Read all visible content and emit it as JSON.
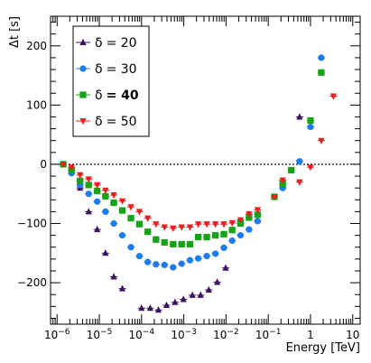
{
  "chart_data": {
    "type": "scatter",
    "xlabel": "Energy [TeV]",
    "ylabel": "Δt [s]",
    "x_scale": "log",
    "xlim": [
      7e-07,
      15
    ],
    "ylim": [
      -270,
      250
    ],
    "x_ticks": [
      {
        "value": 1e-06,
        "base": "10",
        "exp": "−6"
      },
      {
        "value": 1e-05,
        "base": "10",
        "exp": "−5"
      },
      {
        "value": 0.0001,
        "base": "10",
        "exp": "−4"
      },
      {
        "value": 0.001,
        "base": "10",
        "exp": "−3"
      },
      {
        "value": 0.01,
        "base": "10",
        "exp": "−2"
      },
      {
        "value": 0.1,
        "base": "10",
        "exp": "−1"
      },
      {
        "value": 1,
        "base": "1",
        "exp": ""
      },
      {
        "value": 10,
        "base": "10",
        "exp": ""
      }
    ],
    "y_ticks": [
      -200,
      -100,
      0,
      100,
      200
    ],
    "y_tick_labels": [
      "−200",
      "−100",
      "0",
      "100",
      "200"
    ],
    "reference_line_y": 0,
    "legend": {
      "position": "top-left"
    },
    "series": [
      {
        "name": "δ = 20",
        "label_symbol": "δ",
        "label_value": "= 20",
        "bold": false,
        "marker": "triangle-up",
        "color": "#3c1361",
        "points": [
          [
            1.4e-06,
            0
          ],
          [
            2.2e-06,
            -10
          ],
          [
            3.5e-06,
            -40
          ],
          [
            5.6e-06,
            -80
          ],
          [
            8.9e-06,
            -110
          ],
          [
            1.4e-05,
            -150
          ],
          [
            2.2e-05,
            -190
          ],
          [
            3.5e-05,
            -210
          ],
          [
            0.0001,
            -243
          ],
          [
            0.00016,
            -243
          ],
          [
            0.00025,
            -246
          ],
          [
            0.00039,
            -238
          ],
          [
            0.00062,
            -233
          ],
          [
            0.00098,
            -228
          ],
          [
            0.0016,
            -221
          ],
          [
            0.0025,
            -221
          ],
          [
            0.0039,
            -212
          ],
          [
            0.0062,
            -199
          ],
          [
            0.0098,
            -175
          ],
          [
            0.55,
            80
          ]
        ]
      },
      {
        "name": "δ = 30",
        "label_symbol": "δ",
        "label_value": "= 30",
        "bold": false,
        "marker": "circle",
        "color": "#1e7bf0",
        "points": [
          [
            1.4e-06,
            0
          ],
          [
            2.2e-06,
            -15
          ],
          [
            3.5e-06,
            -35
          ],
          [
            5.6e-06,
            -50
          ],
          [
            8.9e-06,
            -63
          ],
          [
            1.4e-05,
            -80
          ],
          [
            2.2e-05,
            -100
          ],
          [
            3.5e-05,
            -120
          ],
          [
            5.6e-05,
            -140
          ],
          [
            8.9e-05,
            -155
          ],
          [
            0.00014,
            -165
          ],
          [
            0.00022,
            -169
          ],
          [
            0.00035,
            -170
          ],
          [
            0.00056,
            -174
          ],
          [
            0.00089,
            -168
          ],
          [
            0.0014,
            -162
          ],
          [
            0.0022,
            -159
          ],
          [
            0.0035,
            -155
          ],
          [
            0.0056,
            -151
          ],
          [
            0.0089,
            -141
          ],
          [
            0.014,
            -129
          ],
          [
            0.022,
            -120
          ],
          [
            0.035,
            -110
          ],
          [
            0.056,
            -96
          ],
          [
            0.22,
            -40
          ],
          [
            0.55,
            5
          ],
          [
            1.0,
            63
          ],
          [
            1.8,
            180
          ]
        ]
      },
      {
        "name": "δ = 40",
        "label_symbol": "δ",
        "label_value": "= 40",
        "bold": true,
        "marker": "square",
        "color": "#16a316",
        "points": [
          [
            1.4e-06,
            0
          ],
          [
            2.2e-06,
            -10
          ],
          [
            3.5e-06,
            -28
          ],
          [
            5.6e-06,
            -35
          ],
          [
            8.9e-06,
            -45
          ],
          [
            1.4e-05,
            -54
          ],
          [
            2.2e-05,
            -65
          ],
          [
            3.5e-05,
            -78
          ],
          [
            5.6e-05,
            -91
          ],
          [
            8.9e-05,
            -101
          ],
          [
            0.00014,
            -114
          ],
          [
            0.00022,
            -127
          ],
          [
            0.00035,
            -132
          ],
          [
            0.00056,
            -135
          ],
          [
            0.00089,
            -135
          ],
          [
            0.0014,
            -135
          ],
          [
            0.0022,
            -123
          ],
          [
            0.0035,
            -123
          ],
          [
            0.0056,
            -120
          ],
          [
            0.0089,
            -118
          ],
          [
            0.014,
            -111
          ],
          [
            0.022,
            -100
          ],
          [
            0.035,
            -90
          ],
          [
            0.056,
            -85
          ],
          [
            0.14,
            -55
          ],
          [
            0.22,
            -33
          ],
          [
            0.35,
            -10
          ],
          [
            1.0,
            74
          ],
          [
            1.8,
            155
          ]
        ]
      },
      {
        "name": "δ = 50",
        "label_symbol": "δ",
        "label_value": "= 50",
        "bold": false,
        "marker": "triangle-down",
        "color": "#ee1c1c",
        "points": [
          [
            1.4e-06,
            0
          ],
          [
            2.2e-06,
            -5
          ],
          [
            3.5e-06,
            -18
          ],
          [
            5.6e-06,
            -25
          ],
          [
            8.9e-06,
            -35
          ],
          [
            1.4e-05,
            -44
          ],
          [
            2.2e-05,
            -52
          ],
          [
            3.5e-05,
            -62
          ],
          [
            5.6e-05,
            -72
          ],
          [
            8.9e-05,
            -80
          ],
          [
            0.00014,
            -91
          ],
          [
            0.00022,
            -101
          ],
          [
            0.00035,
            -106
          ],
          [
            0.00056,
            -108
          ],
          [
            0.00089,
            -106
          ],
          [
            0.0014,
            -106
          ],
          [
            0.0022,
            -101
          ],
          [
            0.0035,
            -101
          ],
          [
            0.0056,
            -101
          ],
          [
            0.0089,
            -101
          ],
          [
            0.014,
            -99
          ],
          [
            0.022,
            -94
          ],
          [
            0.035,
            -84
          ],
          [
            0.056,
            -77
          ],
          [
            0.14,
            -55
          ],
          [
            0.22,
            -27
          ],
          [
            0.55,
            -30
          ],
          [
            1.0,
            -5
          ],
          [
            1.8,
            40
          ],
          [
            3.5,
            115
          ]
        ]
      }
    ]
  }
}
